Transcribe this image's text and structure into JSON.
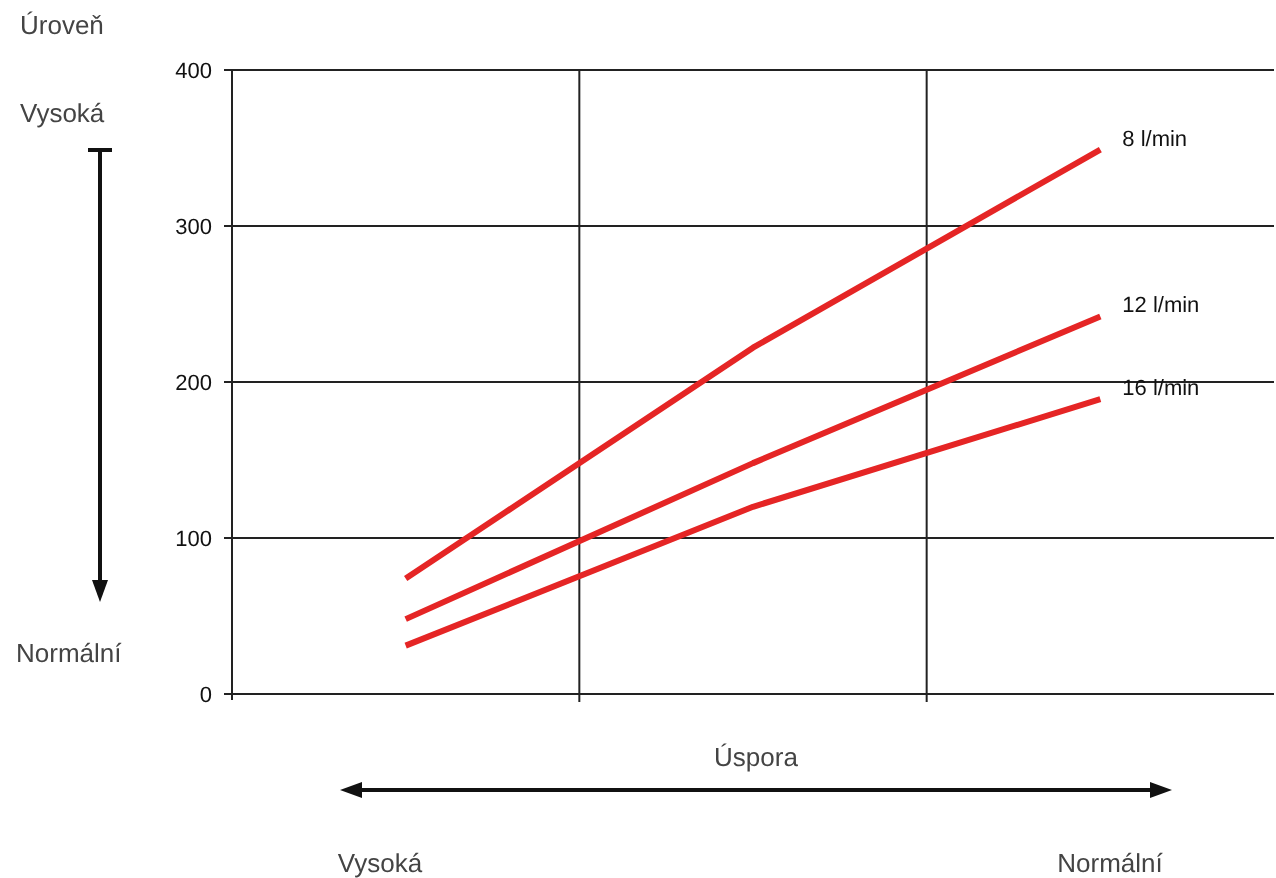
{
  "chart_data": {
    "type": "line",
    "ylabel": "Úroveň",
    "xlabel": "Úspora",
    "annotations": [
      "Vysoká",
      "Normální",
      "Vysoká",
      "Normální"
    ],
    "categories": [
      null,
      null,
      null
    ],
    "ylim": [
      0,
      400
    ],
    "yticks": [
      0,
      100,
      200,
      300,
      400
    ],
    "grid": true,
    "marker": "none",
    "line_style": "solid",
    "series": [
      {
        "name": "8 l/min",
        "color": "#e52525",
        "values": [
          74,
          222,
          349
        ]
      },
      {
        "name": "12 l/min",
        "color": "#e52525",
        "values": [
          48,
          148,
          242
        ]
      },
      {
        "name": "16 l/min",
        "color": "#e52525",
        "values": [
          31,
          120,
          189
        ]
      }
    ]
  }
}
